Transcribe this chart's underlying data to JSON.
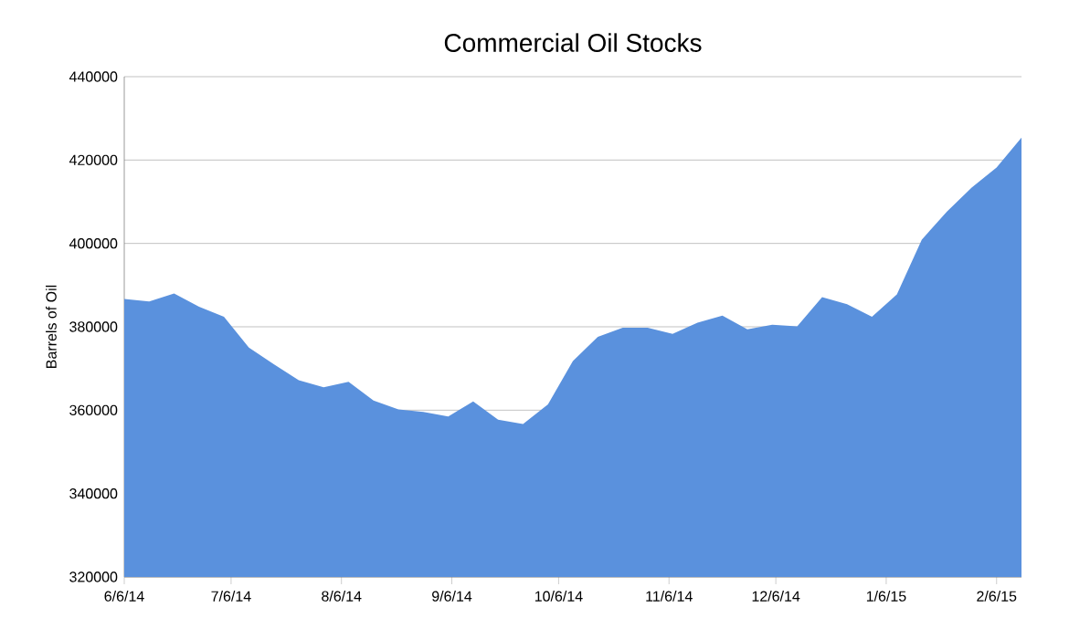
{
  "chart_data": {
    "type": "area",
    "title": "Commercial Oil Stocks",
    "ylabel": "Barrels of Oil",
    "color": "#5a91dd",
    "grid": "y",
    "x": [
      "2014-06-06",
      "2014-06-13",
      "2014-06-20",
      "2014-06-27",
      "2014-07-04",
      "2014-07-11",
      "2014-07-18",
      "2014-07-25",
      "2014-08-01",
      "2014-08-08",
      "2014-08-15",
      "2014-08-22",
      "2014-08-29",
      "2014-09-05",
      "2014-09-12",
      "2014-09-19",
      "2014-09-26",
      "2014-10-03",
      "2014-10-10",
      "2014-10-17",
      "2014-10-24",
      "2014-10-31",
      "2014-11-07",
      "2014-11-14",
      "2014-11-21",
      "2014-11-28",
      "2014-12-05",
      "2014-12-12",
      "2014-12-19",
      "2014-12-26",
      "2015-01-02",
      "2015-01-09",
      "2015-01-16",
      "2015-01-23",
      "2015-01-30",
      "2015-02-06",
      "2015-02-13"
    ],
    "values": [
      386700,
      386100,
      388000,
      384800,
      382400,
      375000,
      371000,
      367200,
      365500,
      366800,
      362300,
      360200,
      359600,
      358500,
      362100,
      357700,
      356700,
      361400,
      371800,
      377600,
      379800,
      379800,
      378300,
      381000,
      382700,
      379400,
      380500,
      380100,
      387100,
      385400,
      382400,
      387800,
      400900,
      407600,
      413400,
      418200,
      425400
    ],
    "xlim": [
      "2014-06-06",
      "2015-02-13"
    ],
    "xticks": [
      {
        "value": "2014-06-06",
        "label": "6/6/14"
      },
      {
        "value": "2014-07-06",
        "label": "7/6/14"
      },
      {
        "value": "2014-08-06",
        "label": "8/6/14"
      },
      {
        "value": "2014-09-06",
        "label": "9/6/14"
      },
      {
        "value": "2014-10-06",
        "label": "10/6/14"
      },
      {
        "value": "2014-11-06",
        "label": "11/6/14"
      },
      {
        "value": "2014-12-06",
        "label": "12/6/14"
      },
      {
        "value": "2015-01-06",
        "label": "1/6/15"
      },
      {
        "value": "2015-02-06",
        "label": "2/6/15"
      }
    ],
    "ylim": [
      320000,
      440000
    ],
    "yticks": [
      320000,
      340000,
      360000,
      380000,
      400000,
      420000,
      440000
    ]
  }
}
